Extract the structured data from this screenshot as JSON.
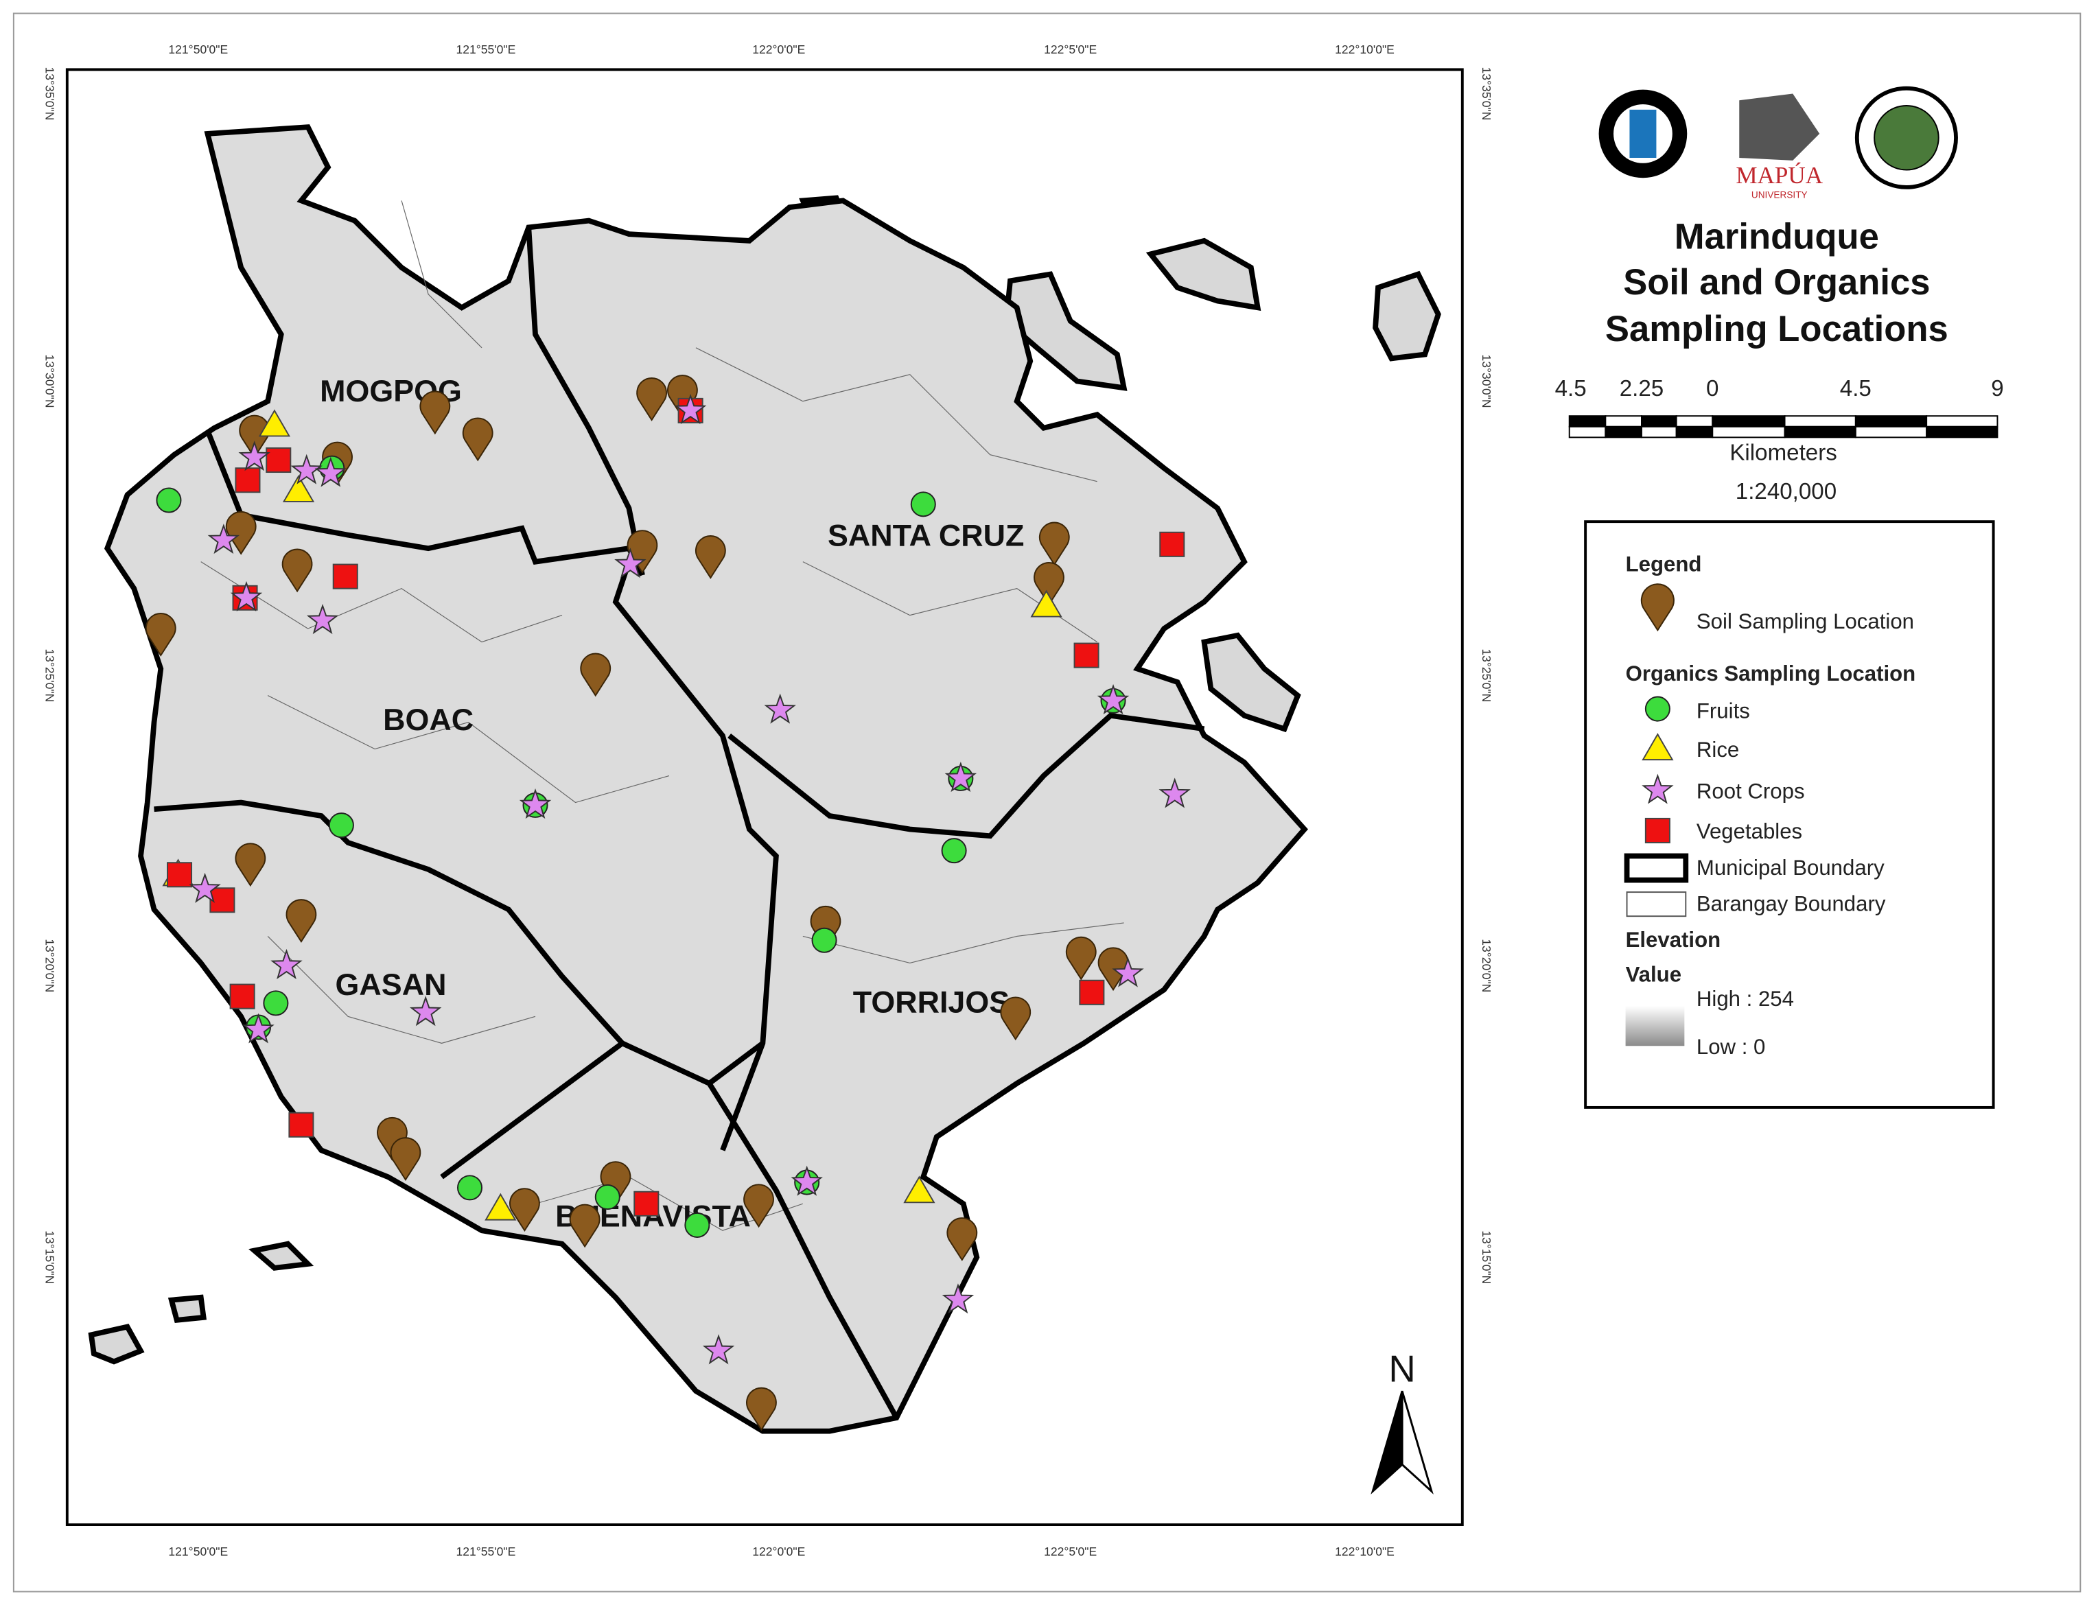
{
  "map": {
    "title": [
      "Marinduque",
      "Soil and Organics",
      "Sampling Locations"
    ],
    "x_axis_labels": [
      "121°50'0\"E",
      "121°55'0\"E",
      "122°0'0\"E",
      "122°5'0\"E",
      "122°10'0\"E"
    ],
    "y_axis_labels": [
      "13°35'0\"N",
      "13°30'0\"N",
      "13°25'0\"N",
      "13°20'0\"N",
      "13°15'0\"N"
    ],
    "municipalities": [
      "MOGPOG",
      "SANTA CRUZ",
      "BOAC",
      "GASAN",
      "TORRIJOS",
      "BUENAVISTA"
    ],
    "north_label": "N",
    "logo_text": [
      "MAPÚA",
      "UNIVERSITY"
    ],
    "scale": {
      "ticks": [
        "4.5",
        "2.25",
        "0",
        "4.5",
        "9"
      ],
      "unit": "Kilometers",
      "ratio": "1:240,000"
    },
    "legend": {
      "title": "Legend",
      "soil": "Soil Sampling Location",
      "organics_title": "Organics Sampling Location",
      "organics": [
        "Fruits",
        "Rice",
        "Root Crops",
        "Vegetables"
      ],
      "municipal": "Municipal Boundary",
      "barangay": "Barangay Boundary",
      "elevation_title": "Elevation",
      "value_title": "Value",
      "high": "High : 254",
      "low": "Low : 0"
    }
  }
}
